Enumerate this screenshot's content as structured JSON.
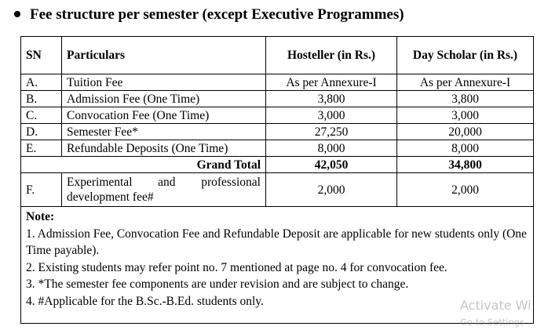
{
  "heading": "Fee structure per semester (except Executive Programmes)",
  "table": {
    "header": [
      "SN",
      "Particulars",
      "Hosteller (in Rs.)",
      "Day Scholar (in Rs.)"
    ],
    "rows": [
      [
        "A.",
        "Tuition Fee",
        "As per Annexure-I",
        "As per Annexure-I"
      ],
      [
        "B.",
        "Admission Fee (One Time)",
        "3,800",
        "3,800"
      ],
      [
        "C.",
        "Convocation Fee (One Time)",
        "3,000",
        "3,000"
      ],
      [
        "D.",
        "Semester Fee*",
        "27,250",
        "20,000"
      ],
      [
        "E.",
        "Refundable Deposits (One Time)",
        "8,000",
        "8,000"
      ]
    ],
    "grand_total": {
      "label": "Grand Total",
      "hosteller": "42,050",
      "day_scholar": "34,800"
    },
    "extra_row": [
      "F.",
      "Experimental and professional development fee#",
      "2,000",
      "2,000"
    ]
  },
  "notes": {
    "title": "Note:",
    "items": [
      "1. Admission Fee, Convocation Fee and Refundable Deposit are applicable for new students only (One Time payable).",
      "2. Existing students may refer point no. 7 mentioned at page no. 4 for convocation fee.",
      "3. *The semester fee components are under revision and are subject to change.",
      "4. #Applicable for the B.Sc.-B.Ed. students only."
    ]
  },
  "watermark": {
    "line1": "Activate Wi",
    "line2": "Go to Settings"
  }
}
